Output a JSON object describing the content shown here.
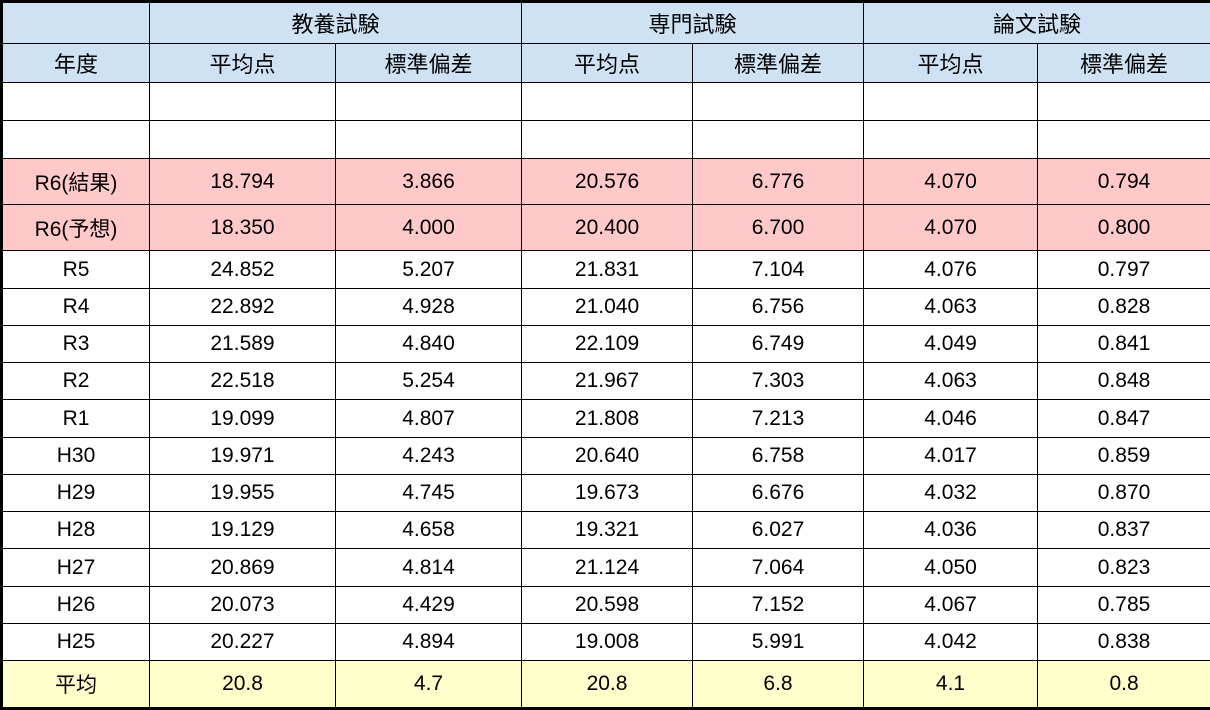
{
  "colors": {
    "header_bg": "#CFE2F3",
    "pink_row_bg": "#FFC9C9",
    "yellow_row_bg": "#FFFFCC",
    "border": "#000000"
  },
  "chart_data": {
    "type": "table",
    "group_headers": [
      "",
      "教養試験",
      "専門試験",
      "論文試験"
    ],
    "sub_headers": [
      "年度",
      "平均点",
      "標準偏差",
      "平均点",
      "標準偏差",
      "平均点",
      "標準偏差"
    ],
    "empty_rows": 2,
    "rows": [
      {
        "year": "R6(結果)",
        "values": [
          "18.794",
          "3.866",
          "20.576",
          "6.776",
          "4.070",
          "0.794"
        ],
        "highlight": "pink"
      },
      {
        "year": "R6(予想)",
        "values": [
          "18.350",
          "4.000",
          "20.400",
          "6.700",
          "4.070",
          "0.800"
        ],
        "highlight": "pink"
      },
      {
        "year": "R5",
        "values": [
          "24.852",
          "5.207",
          "21.831",
          "7.104",
          "4.076",
          "0.797"
        ],
        "highlight": ""
      },
      {
        "year": "R4",
        "values": [
          "22.892",
          "4.928",
          "21.040",
          "6.756",
          "4.063",
          "0.828"
        ],
        "highlight": ""
      },
      {
        "year": "R3",
        "values": [
          "21.589",
          "4.840",
          "22.109",
          "6.749",
          "4.049",
          "0.841"
        ],
        "highlight": ""
      },
      {
        "year": "R2",
        "values": [
          "22.518",
          "5.254",
          "21.967",
          "7.303",
          "4.063",
          "0.848"
        ],
        "highlight": ""
      },
      {
        "year": "R1",
        "values": [
          "19.099",
          "4.807",
          "21.808",
          "7.213",
          "4.046",
          "0.847"
        ],
        "highlight": ""
      },
      {
        "year": "H30",
        "values": [
          "19.971",
          "4.243",
          "20.640",
          "6.758",
          "4.017",
          "0.859"
        ],
        "highlight": ""
      },
      {
        "year": "H29",
        "values": [
          "19.955",
          "4.745",
          "19.673",
          "6.676",
          "4.032",
          "0.870"
        ],
        "highlight": ""
      },
      {
        "year": "H28",
        "values": [
          "19.129",
          "4.658",
          "19.321",
          "6.027",
          "4.036",
          "0.837"
        ],
        "highlight": ""
      },
      {
        "year": "H27",
        "values": [
          "20.869",
          "4.814",
          "21.124",
          "7.064",
          "4.050",
          "0.823"
        ],
        "highlight": ""
      },
      {
        "year": "H26",
        "values": [
          "20.073",
          "4.429",
          "20.598",
          "7.152",
          "4.067",
          "0.785"
        ],
        "highlight": ""
      },
      {
        "year": "H25",
        "values": [
          "20.227",
          "4.894",
          "19.008",
          "5.991",
          "4.042",
          "0.838"
        ],
        "highlight": ""
      },
      {
        "year": "平均",
        "values": [
          "20.8",
          "4.7",
          "20.8",
          "6.8",
          "4.1",
          "0.8"
        ],
        "highlight": "yellow"
      }
    ]
  }
}
